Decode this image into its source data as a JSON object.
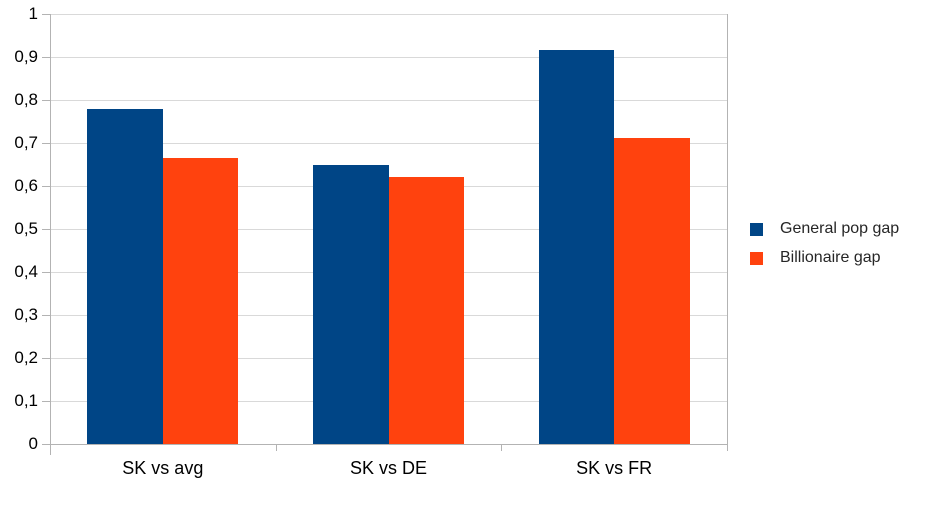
{
  "chart_data": {
    "type": "bar",
    "title": "",
    "categories": [
      "SK vs avg",
      "SK vs DE",
      "SK vs FR"
    ],
    "series": [
      {
        "name": "General pop gap",
        "color": "#004586",
        "values": [
          0.78,
          0.648,
          0.917
        ]
      },
      {
        "name": "Billionaire gap",
        "color": "#FF420E",
        "values": [
          0.665,
          0.62,
          0.712
        ]
      }
    ],
    "ylim": [
      0,
      1
    ],
    "ytick_step": 0.1,
    "ytick_labels": [
      "0",
      "0,1",
      "0,2",
      "0,3",
      "0,4",
      "0,5",
      "0,6",
      "0,7",
      "0,8",
      "0,9",
      "1"
    ],
    "decimal_separator": ",",
    "grid": true,
    "legend_position": "right",
    "xlabel": "",
    "ylabel": ""
  },
  "colors": {
    "background": "#ffffff",
    "gridline": "#d9d9d9",
    "axis": "#b3b3b3",
    "tick_text": "#000000",
    "legend_text": "#262626",
    "series_blue": "#004586",
    "series_orange": "#FF420E"
  }
}
